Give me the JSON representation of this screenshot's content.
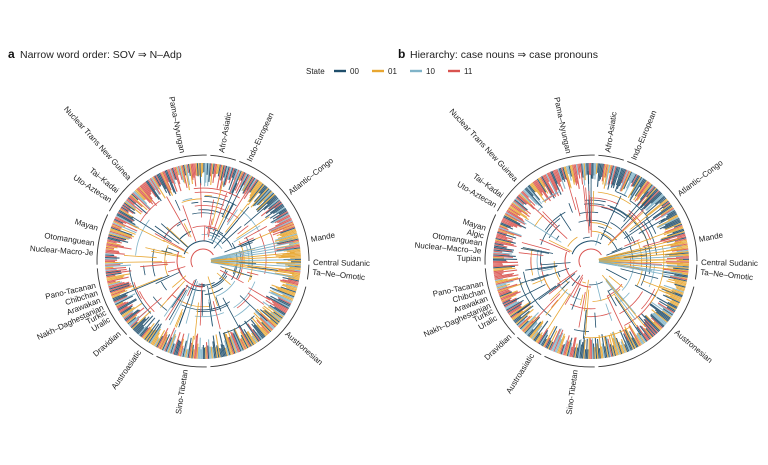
{
  "legend": {
    "title": "State",
    "states": [
      {
        "label": "00",
        "color": "#1f4e6b"
      },
      {
        "label": "01",
        "color": "#e8a631"
      },
      {
        "label": "10",
        "color": "#7fb3c8"
      },
      {
        "label": "11",
        "color": "#d9534f"
      }
    ]
  },
  "panels": [
    {
      "letter": "a",
      "title": "Narrow word order: SOV ⇒ N–Adp",
      "clades": [
        {
          "name": "Pama–Nyungan",
          "angle": -101
        },
        {
          "name": "Afro-Asiatic",
          "angle": -80
        },
        {
          "name": "Indo-European",
          "angle": -65
        },
        {
          "name": "Atlantic–Congo",
          "angle": -38
        },
        {
          "name": "Mande",
          "angle": -11
        },
        {
          "name": "Central Sudanic",
          "angle": 1
        },
        {
          "name": "Ta–Ne–Omotic",
          "angle": 6
        },
        {
          "name": "Austronesian",
          "angle": 41
        },
        {
          "name": "Sino-Tibetan",
          "angle": 99
        },
        {
          "name": "Austroasiatic",
          "angle": 125
        },
        {
          "name": "Dravidian",
          "angle": 139
        },
        {
          "name": "Uralic",
          "angle": 148
        },
        {
          "name": "Turkic",
          "angle": 152
        },
        {
          "name": "Nakh–Daghestanian",
          "angle": 155
        },
        {
          "name": "Arawakan",
          "angle": 159
        },
        {
          "name": "Chibchan",
          "angle": 163
        },
        {
          "name": "Pano-Tacanan",
          "angle": 167
        },
        {
          "name": "Nuclear-Macro-Je",
          "angle": 184
        },
        {
          "name": "Otomanguean",
          "angle": 189
        },
        {
          "name": "Mayan",
          "angle": 197
        },
        {
          "name": "Uto-Aztecan",
          "angle": 213
        },
        {
          "name": "Tai–Kadai",
          "angle": 219
        },
        {
          "name": "Nuclear Trans New Guinea",
          "angle": 228
        }
      ]
    },
    {
      "letter": "b",
      "title": "Hierarchy: case nouns ⇒ case pronouns",
      "clades": [
        {
          "name": "Pama–Nyungan",
          "angle": -102
        },
        {
          "name": "Afro-Asiatic",
          "angle": -81
        },
        {
          "name": "Indo-European",
          "angle": -67
        },
        {
          "name": "Atlantic–Congo",
          "angle": -37
        },
        {
          "name": "Mande",
          "angle": -11
        },
        {
          "name": "Central Sudanic",
          "angle": 1
        },
        {
          "name": "Ta–Ne–Omotic",
          "angle": 6
        },
        {
          "name": "Austronesian",
          "angle": 40
        },
        {
          "name": "Sino-Tibetan",
          "angle": 98
        },
        {
          "name": "Austroasiatic",
          "angle": 122
        },
        {
          "name": "Dravidian",
          "angle": 137
        },
        {
          "name": "Uralic",
          "angle": 149
        },
        {
          "name": "Turkic",
          "angle": 153
        },
        {
          "name": "Nakh–Daghestanian",
          "angle": 156
        },
        {
          "name": "Arawakan",
          "angle": 160
        },
        {
          "name": "Chibchan",
          "angle": 164
        },
        {
          "name": "Pano-Tacanan",
          "angle": 168
        },
        {
          "name": "Tupian",
          "angle": 181
        },
        {
          "name": "Nuclear–Macro–Je",
          "angle": 185
        },
        {
          "name": "Otomanguean",
          "angle": 189
        },
        {
          "name": "Algic",
          "angle": 193
        },
        {
          "name": "Mayan",
          "angle": 197
        },
        {
          "name": "Uto-Aztecan",
          "angle": 210
        },
        {
          "name": "Tai–Kadai",
          "angle": 216
        },
        {
          "name": "Nuclear Trans New Guinea",
          "angle": 227
        }
      ]
    }
  ]
}
